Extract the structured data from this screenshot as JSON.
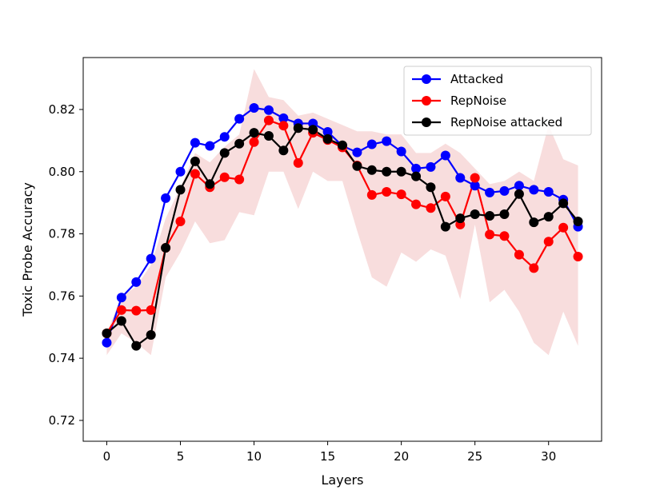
{
  "chart_data": {
    "type": "line",
    "title": "",
    "xlabel": "Layers",
    "ylabel": "Toxic Probe Accuracy",
    "xlim": [
      -1.6,
      33.6
    ],
    "ylim": [
      0.7133,
      0.8367
    ],
    "xticks": [
      0,
      5,
      10,
      15,
      20,
      25,
      30
    ],
    "yticks": [
      0.72,
      0.74,
      0.76,
      0.78,
      0.8,
      0.82
    ],
    "xtick_labels": [
      "0",
      "5",
      "10",
      "15",
      "20",
      "25",
      "30"
    ],
    "ytick_labels": [
      "0.72",
      "0.74",
      "0.76",
      "0.78",
      "0.80",
      "0.82"
    ],
    "grid": false,
    "legend_position": "top-right",
    "x": [
      0,
      1,
      2,
      3,
      4,
      5,
      6,
      7,
      8,
      9,
      10,
      11,
      12,
      13,
      14,
      15,
      16,
      17,
      18,
      19,
      20,
      21,
      22,
      23,
      24,
      25,
      26,
      27,
      28,
      29,
      30,
      31,
      32
    ],
    "series": [
      {
        "name": "Attacked",
        "color": "#0000ff",
        "values": [
          0.745,
          0.7595,
          0.7645,
          0.772,
          0.7915,
          0.8,
          0.8093,
          0.8083,
          0.8112,
          0.817,
          0.8205,
          0.8198,
          0.8172,
          0.8155,
          0.8155,
          0.8128,
          0.8083,
          0.8062,
          0.8088,
          0.8098,
          0.8065,
          0.801,
          0.8015,
          0.8052,
          0.798,
          0.7955,
          0.7933,
          0.7938,
          0.7955,
          0.7942,
          0.7935,
          0.791,
          0.7823
        ]
      },
      {
        "name": "RepNoise",
        "color": "#ff0000",
        "values": [
          0.748,
          0.7555,
          0.7553,
          0.7555,
          0.7755,
          0.784,
          0.7993,
          0.795,
          0.7982,
          0.7975,
          0.8095,
          0.8165,
          0.8148,
          0.8028,
          0.8125,
          0.8102,
          0.8078,
          0.802,
          0.7925,
          0.7935,
          0.7927,
          0.7895,
          0.7883,
          0.792,
          0.783,
          0.798,
          0.7798,
          0.7793,
          0.7733,
          0.769,
          0.7775,
          0.782,
          0.7727
        ]
      },
      {
        "name": "RepNoise attacked",
        "color": "#000000",
        "values": [
          0.748,
          0.752,
          0.744,
          0.7475,
          0.7755,
          0.7942,
          0.8033,
          0.796,
          0.806,
          0.809,
          0.8125,
          0.8115,
          0.8068,
          0.814,
          0.8135,
          0.8105,
          0.8085,
          0.8018,
          0.8005,
          0.8,
          0.8,
          0.7985,
          0.795,
          0.7823,
          0.785,
          0.7863,
          0.7858,
          0.7863,
          0.7928,
          0.7837,
          0.7855,
          0.7898,
          0.784
        ]
      }
    ],
    "bands": [
      {
        "color": "#f4c6c6",
        "opacity": 0.6,
        "upper": [
          0.748,
          0.76,
          0.763,
          0.77,
          0.785,
          0.795,
          0.806,
          0.803,
          0.808,
          0.812,
          0.833,
          0.824,
          0.823,
          0.818,
          0.819,
          0.817,
          0.815,
          0.813,
          0.813,
          0.812,
          0.812,
          0.806,
          0.806,
          0.809,
          0.806,
          0.801,
          0.796,
          0.797,
          0.8,
          0.797,
          0.815,
          0.804,
          0.802
        ],
        "lower": [
          0.741,
          0.748,
          0.745,
          0.741,
          0.766,
          0.774,
          0.784,
          0.777,
          0.778,
          0.787,
          0.786,
          0.8,
          0.8,
          0.788,
          0.8,
          0.797,
          0.797,
          0.781,
          0.766,
          0.763,
          0.774,
          0.771,
          0.775,
          0.773,
          0.759,
          0.783,
          0.758,
          0.762,
          0.755,
          0.745,
          0.741,
          0.755,
          0.744
        ]
      }
    ]
  }
}
